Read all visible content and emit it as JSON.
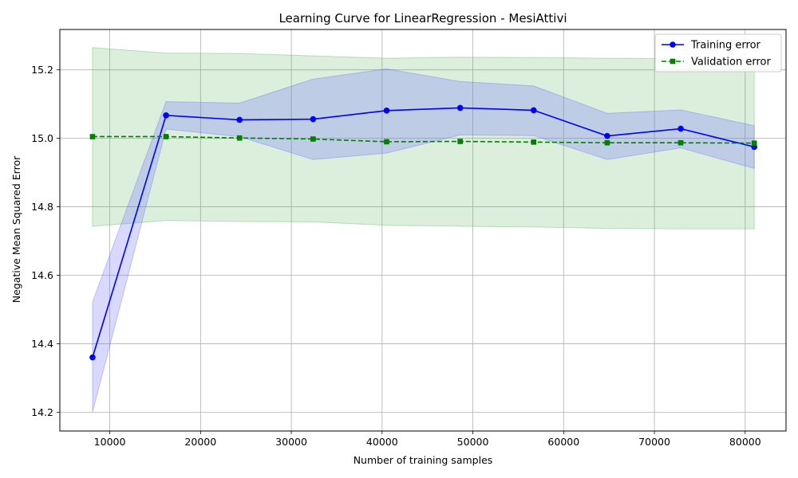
{
  "chart_data": {
    "type": "line",
    "title": "Learning Curve for LinearRegression - MesiAttivi",
    "xlabel": "Number of training samples",
    "ylabel": "Negative Mean Squared Error",
    "xlim": [
      4500,
      84500
    ],
    "ylim": [
      14.145,
      15.318
    ],
    "xticks": [
      10000,
      20000,
      30000,
      40000,
      50000,
      60000,
      70000,
      80000
    ],
    "xtick_labels": [
      "10000",
      "20000",
      "30000",
      "40000",
      "50000",
      "60000",
      "70000",
      "80000"
    ],
    "yticks": [
      14.2,
      14.4,
      14.6,
      14.8,
      15.0,
      15.2
    ],
    "ytick_labels": [
      "14.2",
      "14.4",
      "14.6",
      "14.8",
      "15.0",
      "15.2"
    ],
    "grid": true,
    "legend_position": "top-right",
    "x": [
      8100,
      16200,
      24300,
      32400,
      40500,
      48600,
      56700,
      64800,
      72900,
      81000
    ],
    "series": [
      {
        "name": "Training error",
        "color": "#0000ff",
        "marker": "circle",
        "linestyle": "solid",
        "band_color": "#6666ff",
        "values": [
          14.36,
          15.067,
          15.054,
          15.056,
          15.081,
          15.089,
          15.082,
          15.007,
          15.028,
          14.975
        ],
        "lower": [
          14.2,
          15.027,
          15.005,
          14.938,
          14.957,
          15.01,
          15.008,
          14.938,
          14.972,
          14.912
        ],
        "upper": [
          14.522,
          15.107,
          15.103,
          15.173,
          15.203,
          15.166,
          15.153,
          15.073,
          15.083,
          15.037
        ]
      },
      {
        "name": "Validation error",
        "color": "#008000",
        "marker": "square",
        "linestyle": "dashed",
        "band_color": "#4caf50",
        "values": [
          15.005,
          15.005,
          15.001,
          14.998,
          14.99,
          14.991,
          14.989,
          14.987,
          14.987,
          14.986
        ],
        "lower": [
          14.743,
          14.76,
          14.757,
          14.756,
          14.746,
          14.743,
          14.741,
          14.737,
          14.736,
          14.736
        ],
        "upper": [
          15.265,
          15.249,
          15.248,
          15.241,
          15.234,
          15.237,
          15.236,
          15.234,
          15.233,
          15.233
        ]
      }
    ]
  }
}
